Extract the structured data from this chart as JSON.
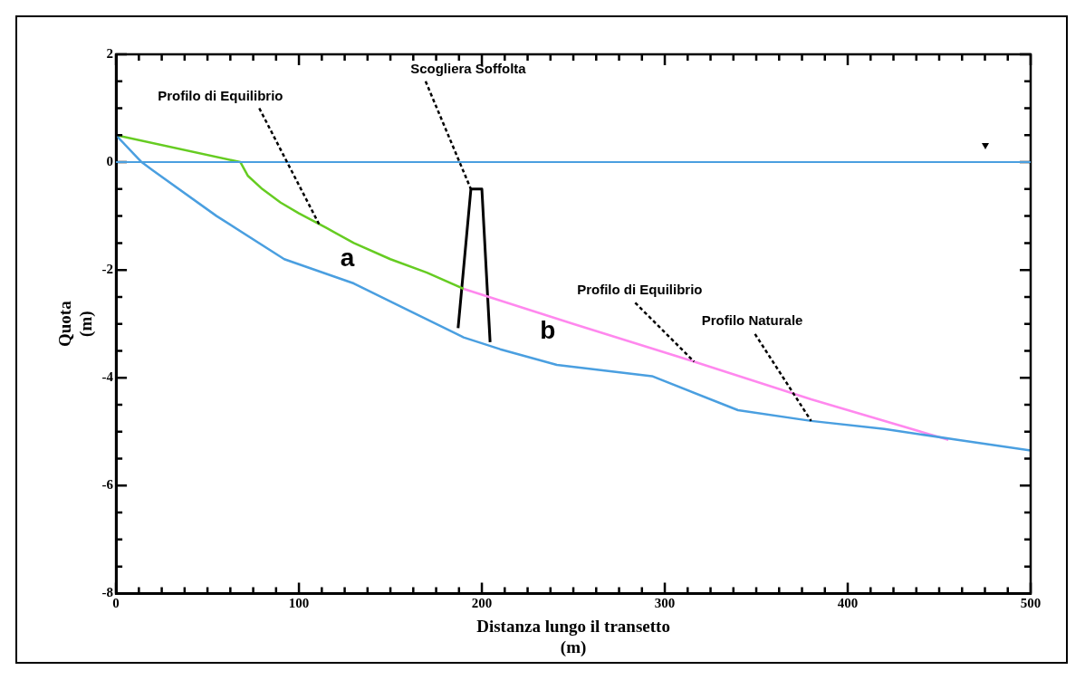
{
  "chart_data": {
    "type": "line",
    "xlabel": "Distanza lungo il transetto\n(m)",
    "ylabel": "Quota\n(m)",
    "xlim": [
      0,
      500
    ],
    "ylim": [
      -8,
      2
    ],
    "xticks": [
      0,
      {
        "value": 12.5,
        "label": null
      },
      {
        "value": 25,
        "label": null
      },
      {
        "value": 37.5,
        "label": null
      },
      {
        "value": 50,
        "label": null
      },
      {
        "value": 62.5,
        "label": null
      },
      {
        "value": 75,
        "label": null
      },
      {
        "value": 87.5,
        "label": null
      },
      100,
      {
        "value": 112.5,
        "label": null
      },
      {
        "value": 125,
        "label": null
      },
      {
        "value": 137.5,
        "label": null
      },
      {
        "value": 150,
        "label": null
      },
      {
        "value": 162.5,
        "label": null
      },
      {
        "value": 175,
        "label": null
      },
      {
        "value": 187.5,
        "label": null
      },
      200,
      {
        "value": 212.5,
        "label": null
      },
      {
        "value": 225,
        "label": null
      },
      {
        "value": 237.5,
        "label": null
      },
      {
        "value": 250,
        "label": null
      },
      {
        "value": 262.5,
        "label": null
      },
      {
        "value": 275,
        "label": null
      },
      {
        "value": 287.5,
        "label": null
      },
      300,
      {
        "value": 312.5,
        "label": null
      },
      {
        "value": 325,
        "label": null
      },
      {
        "value": 337.5,
        "label": null
      },
      {
        "value": 350,
        "label": null
      },
      {
        "value": 362.5,
        "label": null
      },
      {
        "value": 375,
        "label": null
      },
      {
        "value": 387.5,
        "label": null
      },
      400,
      {
        "value": 412.5,
        "label": null
      },
      {
        "value": 425,
        "label": null
      },
      {
        "value": 437.5,
        "label": null
      },
      {
        "value": 450,
        "label": null
      },
      {
        "value": 462.5,
        "label": null
      },
      {
        "value": 475,
        "label": null
      },
      {
        "value": 487.5,
        "label": null
      },
      500
    ],
    "yticks": [
      -8,
      {
        "value": -7.5,
        "label": null
      },
      {
        "value": -7,
        "label": null
      },
      {
        "value": -6.5,
        "label": null
      },
      -6,
      {
        "value": -5.5,
        "label": null
      },
      {
        "value": -5,
        "label": null
      },
      {
        "value": -4.5,
        "label": null
      },
      -4,
      {
        "value": -3.5,
        "label": null
      },
      {
        "value": -3,
        "label": null
      },
      {
        "value": -2.5,
        "label": null
      },
      -2,
      {
        "value": -1.5,
        "label": null
      },
      {
        "value": -1,
        "label": null
      },
      {
        "value": -0.5,
        "label": null
      },
      0,
      {
        "value": 0.5,
        "label": null
      },
      {
        "value": 1,
        "label": null
      },
      {
        "value": 1.5,
        "label": null
      },
      2
    ],
    "grid": false,
    "legend": false,
    "marker": "none",
    "series": [
      {
        "color": "#4a9fe0",
        "x": [
          0,
          14,
          20,
          55,
          92,
          130,
          160,
          190,
          210,
          241,
          293,
          340,
          380,
          420,
          460,
          500
        ],
        "values": [
          0.5,
          0,
          -0.15,
          -1.0,
          -1.8,
          -2.25,
          -2.75,
          -3.25,
          -3.47,
          -3.76,
          -3.97,
          -4.6,
          -4.8,
          -4.95,
          -5.15,
          -5.35
        ]
      },
      {
        "color": "#66cc22",
        "x": [
          0,
          68,
          72,
          80,
          90,
          100,
          115,
          130,
          150,
          170,
          190
        ],
        "values": [
          0.5,
          0,
          -0.25,
          -0.5,
          -0.75,
          -0.95,
          -1.22,
          -1.5,
          -1.8,
          -2.05,
          -2.35
        ]
      },
      {
        "color": "#ff88ee",
        "x": [
          190,
          250,
          315,
          380,
          455
        ],
        "values": [
          -2.35,
          -3.0,
          -3.69,
          -4.4,
          -5.15
        ]
      },
      {
        "color": "#000000",
        "x": [
          187,
          194,
          200,
          204.5
        ],
        "values": [
          -3.08,
          -0.5,
          -0.5,
          -3.34
        ]
      }
    ],
    "ref_lines": [
      {
        "axis": "y",
        "value": 0,
        "color": "#4a9fe0"
      }
    ],
    "annotations": [
      {
        "text": "Profilo di Equilibrio",
        "x": 111,
        "y": -1.15
      },
      {
        "text": "Scogliera Soffolta",
        "x": 194,
        "y": -0.5
      },
      "a",
      "b",
      {
        "text": "Profilo di Equilibrio",
        "x": 316,
        "y": -3.7
      },
      {
        "text": "Profilo Naturale",
        "x": 380,
        "y": -4.8
      }
    ]
  }
}
